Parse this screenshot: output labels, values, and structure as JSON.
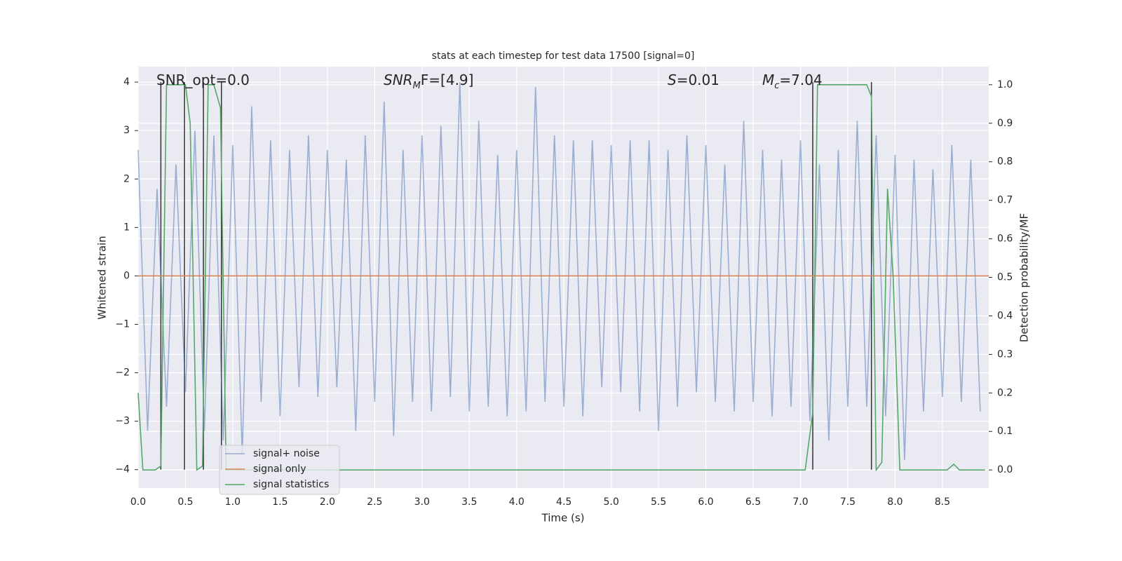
{
  "chart_data": {
    "type": "line",
    "title": "stats at each timestep for test data 17500 [signal=0]",
    "xlabel": "Time (s)",
    "ylabel": "Whitened strain",
    "y2label": "Detection probability/MF",
    "xlim": [
      0,
      8.99
    ],
    "ylim": [
      -4.38,
      4.32
    ],
    "y2lim": [
      -0.047,
      1.047
    ],
    "xticks": [
      {
        "value": 0,
        "label": "0.0"
      },
      {
        "value": 0.5,
        "label": "0.5"
      },
      {
        "value": 1,
        "label": "1.0"
      },
      {
        "value": 1.5,
        "label": "1.5"
      },
      {
        "value": 2,
        "label": "2.0"
      },
      {
        "value": 2.5,
        "label": "2.5"
      },
      {
        "value": 3,
        "label": "3.0"
      },
      {
        "value": 3.5,
        "label": "3.5"
      },
      {
        "value": 4,
        "label": "4.0"
      },
      {
        "value": 4.5,
        "label": "4.5"
      },
      {
        "value": 5,
        "label": "5.0"
      },
      {
        "value": 5.5,
        "label": "5.5"
      },
      {
        "value": 6,
        "label": "6.0"
      },
      {
        "value": 6.5,
        "label": "6.5"
      },
      {
        "value": 7,
        "label": "7.0"
      },
      {
        "value": 7.5,
        "label": "7.5"
      },
      {
        "value": 8,
        "label": "8.0"
      },
      {
        "value": 8.5,
        "label": "8.5"
      }
    ],
    "yticks": [
      {
        "value": -4,
        "label": "−4"
      },
      {
        "value": -3,
        "label": "−3"
      },
      {
        "value": -2,
        "label": "−2"
      },
      {
        "value": -1,
        "label": "−1"
      },
      0,
      1,
      2,
      3,
      4
    ],
    "y2ticks": [
      {
        "value": 0,
        "label": "0.0"
      },
      {
        "value": 0.1,
        "label": "0.1"
      },
      {
        "value": 0.2,
        "label": "0.2"
      },
      {
        "value": 0.3,
        "label": "0.3"
      },
      {
        "value": 0.4,
        "label": "0.4"
      },
      {
        "value": 0.5,
        "label": "0.5"
      },
      {
        "value": 0.6,
        "label": "0.6"
      },
      {
        "value": 0.7,
        "label": "0.7"
      },
      {
        "value": 0.8,
        "label": "0.8"
      },
      {
        "value": 0.9,
        "label": "0.9"
      },
      {
        "value": 1,
        "label": "1.0"
      }
    ],
    "grid": true,
    "legend": "lower left",
    "series": [
      {
        "name": "signal+ noise",
        "color": "#4c72b0",
        "x": [
          0,
          0.1,
          0.2,
          0.3,
          0.4,
          0.5,
          0.6,
          0.7,
          0.8,
          0.9,
          1,
          1.1,
          1.2,
          1.3,
          1.4,
          1.5,
          1.6,
          1.7,
          1.8,
          1.9,
          2,
          2.1,
          2.2,
          2.3,
          2.4,
          2.5,
          2.6,
          2.7,
          2.8,
          2.9,
          3,
          3.1,
          3.2,
          3.3,
          3.4,
          3.5,
          3.6,
          3.7,
          3.8,
          3.9,
          4,
          4.1,
          4.2,
          4.3,
          4.4,
          4.5,
          4.6,
          4.7,
          4.8,
          4.9,
          5,
          5.1,
          5.2,
          5.3,
          5.4,
          5.5,
          5.6,
          5.7,
          5.8,
          5.9,
          6,
          6.1,
          6.2,
          6.3,
          6.4,
          6.5,
          6.6,
          6.7,
          6.8,
          6.9,
          7,
          7.1,
          7.2,
          7.3,
          7.4,
          7.5,
          7.6,
          7.7,
          7.8,
          7.9,
          8,
          8.1,
          8.2,
          8.3,
          8.4,
          8.5,
          8.6,
          8.7,
          8.8,
          8.9
        ],
        "values": [
          2.6,
          -3.2,
          1.8,
          -2.7,
          2.3,
          -2.4,
          3.0,
          -3.2,
          2.9,
          -3.4,
          2.7,
          -3.7,
          3.5,
          -2.6,
          2.8,
          -2.9,
          2.6,
          -2.3,
          2.9,
          -2.5,
          2.6,
          -2.3,
          2.4,
          -3.2,
          2.9,
          -2.6,
          3.6,
          -3.3,
          2.6,
          -2.6,
          2.9,
          -2.8,
          3.1,
          -2.5,
          4.0,
          -2.8,
          3.2,
          -2.7,
          2.5,
          -2.9,
          2.6,
          -2.8,
          3.9,
          -2.6,
          2.9,
          -2.7,
          2.8,
          -2.9,
          2.8,
          -2.3,
          2.7,
          -2.4,
          2.8,
          -2.8,
          2.8,
          -3.2,
          2.6,
          -2.7,
          2.9,
          -2.4,
          2.7,
          -2.6,
          2.3,
          -2.8,
          3.2,
          -2.6,
          2.6,
          -2.9,
          2.4,
          -2.7,
          2.8,
          -3.0,
          2.3,
          -3.4,
          2.6,
          -2.7,
          3.2,
          -2.7,
          2.9,
          -2.9,
          2.5,
          -3.8,
          2.4,
          -2.8,
          2.2,
          -2.5,
          2.7,
          -2.6,
          2.4,
          -2.8
        ]
      },
      {
        "name": "signal only",
        "color": "#dd8452",
        "x": [
          0,
          8.99
        ],
        "values": [
          0,
          0
        ]
      },
      {
        "name": "signal statistics",
        "color": "#55a868",
        "axis": "y2",
        "x": [
          0,
          0.05,
          0.18,
          0.24,
          0.3,
          0.5,
          0.55,
          0.62,
          0.68,
          0.74,
          0.8,
          0.87,
          0.93,
          7.05,
          7.13,
          7.18,
          7.7,
          7.75,
          7.8,
          7.86,
          7.92,
          7.98,
          8.05,
          8.12,
          8.55,
          8.62,
          8.68,
          8.95
        ],
        "values": [
          0.2,
          0,
          0,
          0.01,
          1,
          1,
          0.9,
          0,
          0.01,
          1,
          1,
          0.94,
          0,
          0,
          0.15,
          1,
          1,
          0.97,
          0,
          0.02,
          0.73,
          0.5,
          0,
          0,
          0,
          0.015,
          0,
          0
        ]
      }
    ],
    "vlines": {
      "x": [
        0.24,
        0.49,
        0.69,
        0.88,
        7.13,
        7.75
      ],
      "ymin": -4,
      "ymax": 4,
      "color": "#333333"
    },
    "annotations": [
      [
        {
          "t": "SNR_opt=0.0"
        }
      ],
      [
        {
          "t": "SNR",
          "i": true
        },
        {
          "t": "M",
          "i": true,
          "sub": true
        },
        {
          "t": "F=[4.9]"
        }
      ],
      [
        {
          "t": "S",
          "i": true
        },
        {
          "t": "=0.01"
        }
      ],
      [
        {
          "t": "M",
          "i": true
        },
        {
          "t": "c",
          "i": true,
          "sub": true
        },
        {
          "t": "=7.04"
        }
      ]
    ]
  }
}
